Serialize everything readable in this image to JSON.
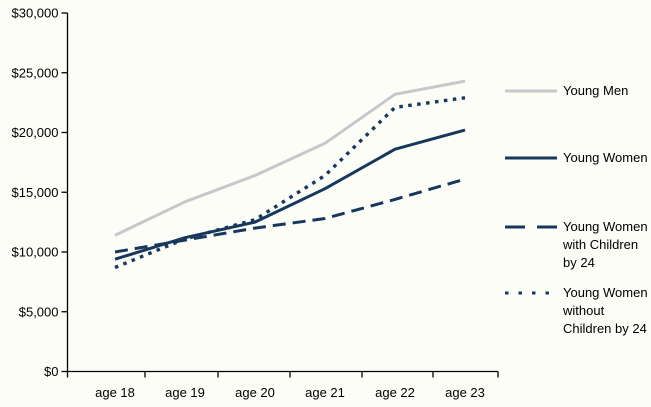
{
  "chart_data": {
    "type": "line",
    "x_categories": [
      "age 18",
      "age 19",
      "age 20",
      "age 21",
      "age 22",
      "age 23"
    ],
    "y_tick_labels": [
      "$0",
      "$5,000",
      "$10,000",
      "$15,000",
      "$20,000",
      "$25,000",
      "$30,000"
    ],
    "y_tick_values": [
      0,
      5000,
      10000,
      15000,
      20000,
      25000,
      30000
    ],
    "ylim": [
      0,
      30000
    ],
    "grid": false,
    "legend_position": "right",
    "series": [
      {
        "name": "Young Men",
        "legend_lines": [
          "Young Men"
        ],
        "line_style": "solid",
        "color": "#c7c8cc",
        "values": [
          11400,
          14200,
          16400,
          19100,
          23200,
          24300
        ]
      },
      {
        "name": "Young Women",
        "legend_lines": [
          "Young Women"
        ],
        "line_style": "solid",
        "color": "#17375d",
        "values": [
          9400,
          11200,
          12500,
          15300,
          18600,
          20200
        ]
      },
      {
        "name": "Young Women with Children by 24",
        "legend_lines": [
          "Young Women",
          "with Children",
          "by 24"
        ],
        "line_style": "dashed",
        "color": "#17375d",
        "values": [
          10000,
          11000,
          12000,
          12800,
          14400,
          16100
        ]
      },
      {
        "name": "Young Women without Children by 24",
        "legend_lines": [
          "Young Women",
          "without",
          "Children by 24"
        ],
        "line_style": "dotted",
        "color": "#17375d",
        "values": [
          8700,
          11100,
          12700,
          16400,
          22100,
          22900
        ]
      }
    ]
  },
  "colors": {
    "background": "#fdfdf8",
    "axis": "#000000",
    "label_text": "#000000"
  }
}
